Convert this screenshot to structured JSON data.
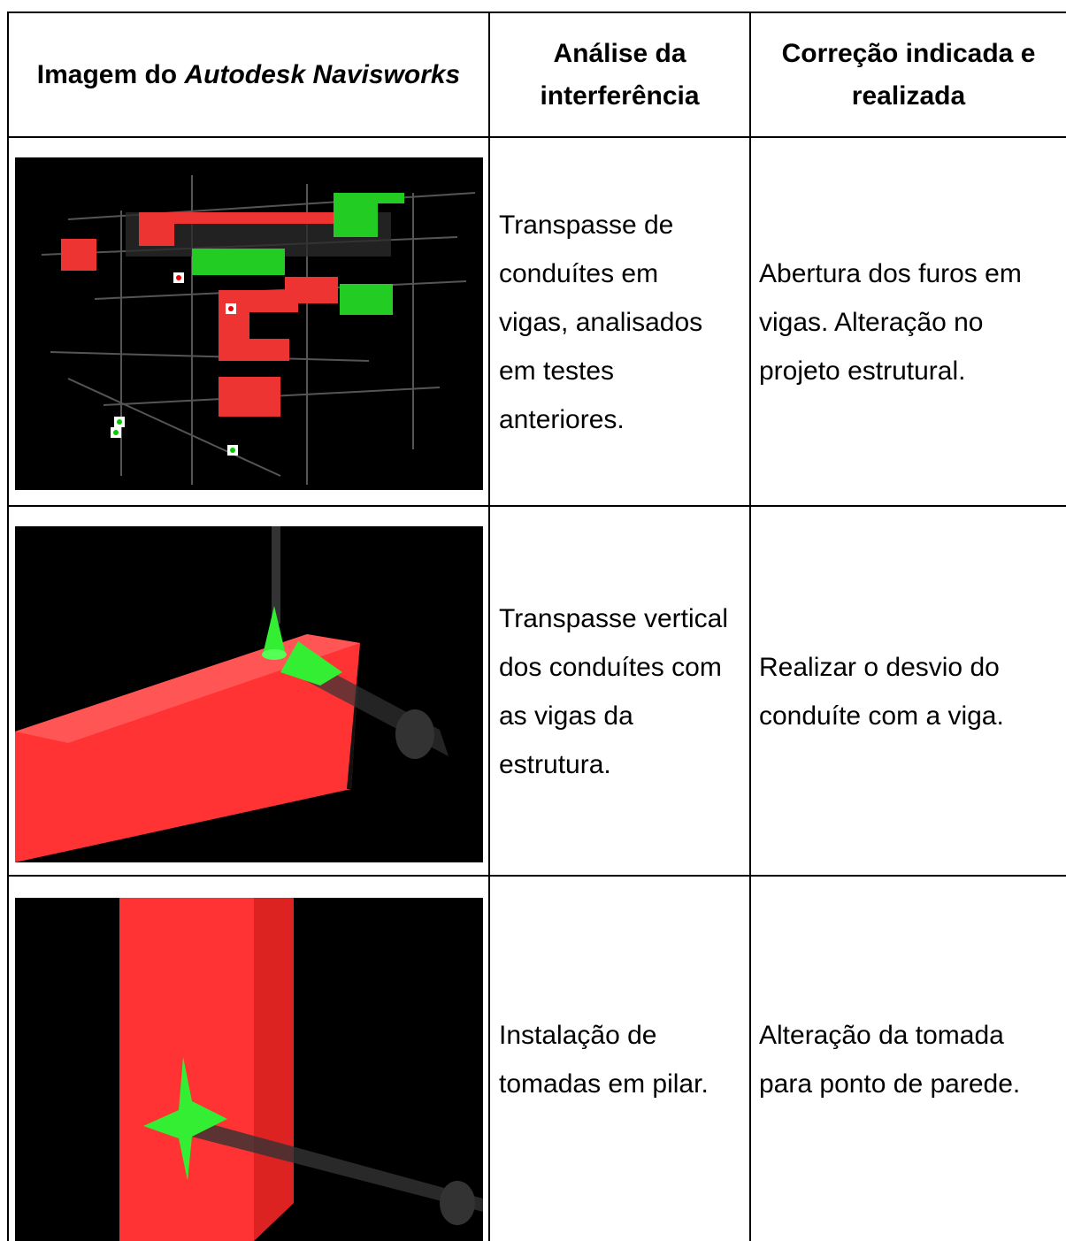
{
  "header": {
    "image": {
      "prefix": "Imagem do",
      "italic": "Autodesk Navisworks"
    },
    "analysis": [
      "Análise da",
      "interferência"
    ],
    "correction": [
      "Correção indicada e",
      "realizada"
    ]
  },
  "rows": [
    {
      "analysis": [
        "Transpasse de",
        "conduítes em",
        "vigas, analisados",
        "em testes",
        "anteriores."
      ],
      "correction": [
        "Abertura dos furos em",
        "vigas. Alteração no",
        "projeto estrutural."
      ]
    },
    {
      "analysis": [
        "Transpasse vertical",
        "dos conduítes com",
        "as vigas da",
        "estrutura."
      ],
      "correction": [
        "Realizar o desvio do",
        "conduíte com a viga."
      ]
    },
    {
      "analysis": [
        "Instalação de",
        "tomadas em pilar."
      ],
      "correction": [
        "Alteração da tomada",
        "para ponto de parede."
      ]
    }
  ]
}
